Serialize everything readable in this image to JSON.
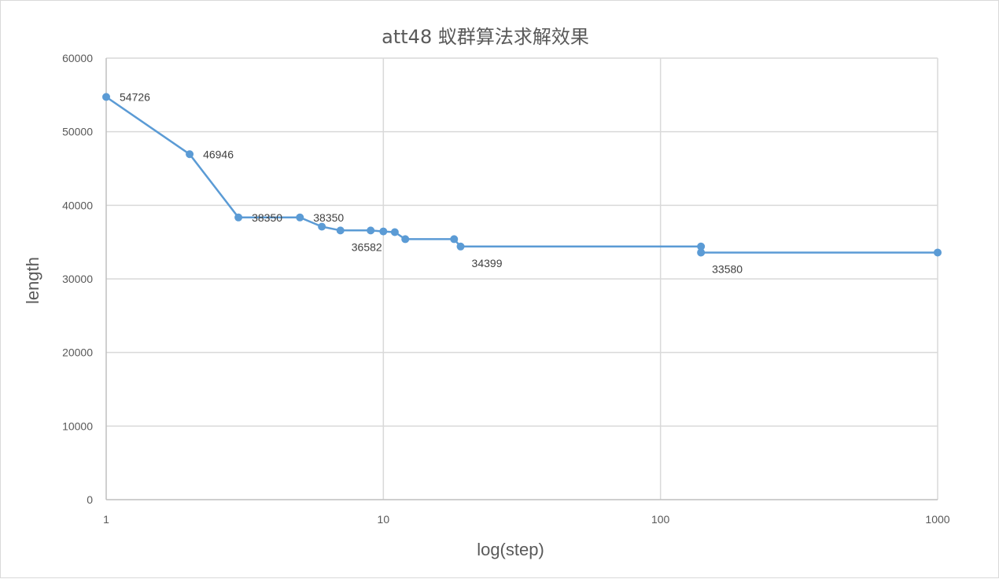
{
  "chart_data": {
    "type": "line",
    "title": "att48 蚁群算法求解效果",
    "xlabel": "log(step)",
    "ylabel": "length",
    "x_scale": "log10",
    "xlim": [
      1,
      1000
    ],
    "ylim": [
      0,
      60000
    ],
    "x_ticks": [
      "1",
      "10",
      "100",
      "1000"
    ],
    "y_ticks": [
      "0",
      "10000",
      "20000",
      "30000",
      "40000",
      "50000",
      "60000"
    ],
    "grid": true,
    "legend": "none",
    "colors": {
      "series": "#5b9bd5",
      "grid": "#d9d9d9",
      "text": "#595959"
    },
    "series": [
      {
        "points": [
          {
            "x": 1,
            "y": 54726,
            "label": "54726"
          },
          {
            "x": 2,
            "y": 46946,
            "label": "46946"
          },
          {
            "x": 3,
            "y": 38350,
            "label": "38350"
          },
          {
            "x": 5,
            "y": 38350,
            "label": "38350"
          },
          {
            "x": 6,
            "y": 37100
          },
          {
            "x": 7,
            "y": 36582,
            "label": "36582"
          },
          {
            "x": 9,
            "y": 36582
          },
          {
            "x": 10,
            "y": 36450
          },
          {
            "x": 11,
            "y": 36350
          },
          {
            "x": 12,
            "y": 35400
          },
          {
            "x": 18,
            "y": 35400
          },
          {
            "x": 19,
            "y": 34399,
            "label": "34399"
          },
          {
            "x": 140,
            "y": 34399
          },
          {
            "x": 140,
            "y": 33580,
            "label": "33580"
          },
          {
            "x": 1000,
            "y": 33580
          }
        ]
      }
    ]
  }
}
